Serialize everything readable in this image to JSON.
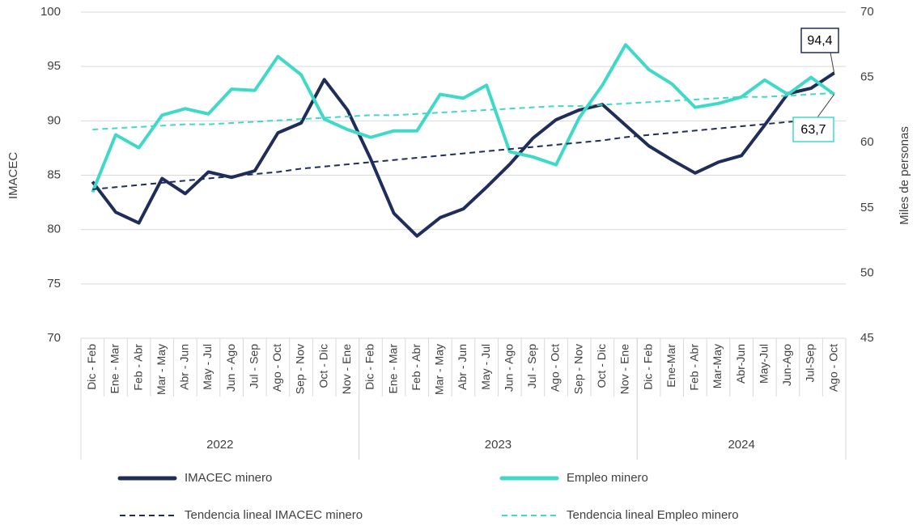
{
  "chart_data": {
    "type": "line",
    "y_label": "IMACEC",
    "y2_label": "Miles de personas",
    "categories": [
      "Dic - Feb",
      "Ene - Mar",
      "Feb - Abr",
      "Mar - May",
      "Abr - Jun",
      "May - Jul",
      "Jun - Ago",
      "Jul - Sep",
      "Ago - Oct",
      "Sep - Nov",
      "Oct - Dic",
      "Nov - Ene",
      "Dic - Feb",
      "Ene - Mar",
      "Feb - Abr",
      "Mar - May",
      "Abr - Jun",
      "May - Jul",
      "Jun - Ago",
      "Jul - Sep",
      "Ago - Oct",
      "Sep - Nov",
      "Oct - Dic",
      "Nov - Ene",
      "Dic - Feb",
      "Ene-Mar",
      "Feb - Abr",
      "Mar-May",
      "Abr-Jun",
      "May-Jul",
      "Jun-Ago",
      "Jul-Sep",
      "Ago - Oct"
    ],
    "groups": [
      {
        "label": "2022",
        "start": 0,
        "count": 12
      },
      {
        "label": "2023",
        "start": 12,
        "count": 12
      },
      {
        "label": "2024",
        "start": 24,
        "count": 9
      }
    ],
    "ylim": [
      70,
      100
    ],
    "yticks": [
      70,
      75,
      80,
      85,
      90,
      95,
      100
    ],
    "y2lim": [
      45,
      70
    ],
    "y2ticks": [
      45,
      50,
      55,
      60,
      65,
      70
    ],
    "grid": true,
    "series": [
      {
        "name": "IMACEC minero",
        "color": "#1f2d5a",
        "style": "solid",
        "values": [
          84.4,
          81.6,
          80.6,
          84.7,
          83.3,
          85.3,
          84.8,
          85.4,
          88.9,
          89.8,
          93.8,
          91.0,
          86.5,
          81.5,
          79.4,
          81.1,
          81.9,
          83.9,
          86.0,
          88.4,
          90.1,
          91.0,
          91.5,
          89.6,
          87.7,
          86.4,
          85.2,
          86.2,
          86.8,
          89.6,
          92.5,
          93.0,
          94.4
        ],
        "value_labels": [
          null,
          null,
          null,
          null,
          null,
          null,
          null,
          null,
          null,
          null,
          null,
          null,
          null,
          null,
          null,
          null,
          null,
          null,
          null,
          null,
          null,
          null,
          null,
          null,
          null,
          null,
          null,
          null,
          null,
          null,
          null,
          null,
          "94,4"
        ]
      },
      {
        "name": "Empleo minero",
        "color": "#40d9c8",
        "style": "solid",
        "axis": "y2",
        "values": [
          56.2,
          60.6,
          59.6,
          62.1,
          62.6,
          62.2,
          64.1,
          64.0,
          66.6,
          65.2,
          61.8,
          61.0,
          60.4,
          60.9,
          60.9,
          63.7,
          63.4,
          64.4,
          59.3,
          58.9,
          58.3,
          61.9,
          64.4,
          67.5,
          65.6,
          64.5,
          62.7,
          63.0,
          63.5,
          64.8,
          63.7,
          65.0,
          63.7
        ],
        "value_labels": [
          null,
          null,
          null,
          null,
          null,
          null,
          null,
          null,
          null,
          null,
          null,
          null,
          null,
          null,
          null,
          null,
          null,
          null,
          null,
          null,
          null,
          null,
          null,
          null,
          null,
          null,
          null,
          null,
          null,
          null,
          null,
          null,
          "63,7"
        ]
      },
      {
        "name": "Tendencia lineal IMACEC minero",
        "color": "#1f2d5a",
        "style": "dashed",
        "values": [
          83.7,
          83.9,
          84.1,
          84.3,
          84.5,
          84.7,
          84.9,
          85.1,
          85.3,
          85.6,
          85.8,
          86.0,
          86.2,
          86.4,
          86.6,
          86.8,
          87.0,
          87.2,
          87.4,
          87.6,
          87.8,
          88.0,
          88.2,
          88.5,
          88.7,
          88.9,
          89.1,
          89.3,
          89.5,
          89.7,
          89.9,
          90.1,
          90.3
        ]
      },
      {
        "name": "Tendencia lineal Empleo minero",
        "color": "#40d9c8",
        "style": "dashed",
        "axis": "y2",
        "values": [
          61.0,
          61.1,
          61.2,
          61.3,
          61.4,
          61.4,
          61.5,
          61.6,
          61.7,
          61.8,
          61.9,
          62.0,
          62.1,
          62.1,
          62.2,
          62.3,
          62.4,
          62.5,
          62.6,
          62.7,
          62.8,
          62.8,
          62.9,
          63.0,
          63.1,
          63.2,
          63.3,
          63.4,
          63.5,
          63.5,
          63.6,
          63.7,
          63.8
        ]
      }
    ]
  }
}
